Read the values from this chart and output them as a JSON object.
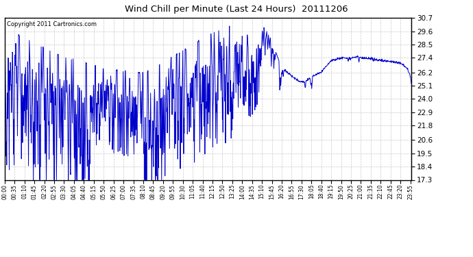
{
  "title": "Wind Chill per Minute (Last 24 Hours)  20111206",
  "copyright": "Copyright 2011 Cartronics.com",
  "line_color": "#0000cc",
  "bg_color": "#ffffff",
  "plot_bg_color": "#ffffff",
  "grid_color": "#bbbbbb",
  "yticks": [
    17.3,
    18.4,
    19.5,
    20.6,
    21.8,
    22.9,
    24.0,
    25.1,
    26.2,
    27.4,
    28.5,
    29.6,
    30.7
  ],
  "ylim": [
    17.3,
    30.7
  ],
  "total_minutes": 1440,
  "x_tick_labels": [
    "00:00",
    "00:35",
    "01:10",
    "01:45",
    "02:20",
    "02:55",
    "03:30",
    "04:05",
    "04:40",
    "05:15",
    "05:50",
    "06:25",
    "07:00",
    "07:35",
    "08:10",
    "08:45",
    "09:20",
    "09:55",
    "10:30",
    "11:05",
    "11:40",
    "12:15",
    "12:50",
    "13:25",
    "14:00",
    "14:35",
    "15:10",
    "15:45",
    "16:20",
    "16:55",
    "17:30",
    "18:05",
    "18:40",
    "19:15",
    "19:50",
    "20:25",
    "21:00",
    "21:35",
    "22:10",
    "22:45",
    "23:20",
    "23:55"
  ],
  "x_tick_positions": [
    0,
    35,
    70,
    105,
    140,
    175,
    210,
    245,
    280,
    315,
    350,
    385,
    420,
    455,
    490,
    525,
    560,
    595,
    630,
    665,
    700,
    735,
    770,
    805,
    840,
    875,
    910,
    945,
    980,
    1015,
    1050,
    1085,
    1120,
    1155,
    1190,
    1225,
    1260,
    1295,
    1330,
    1365,
    1400,
    1435
  ]
}
